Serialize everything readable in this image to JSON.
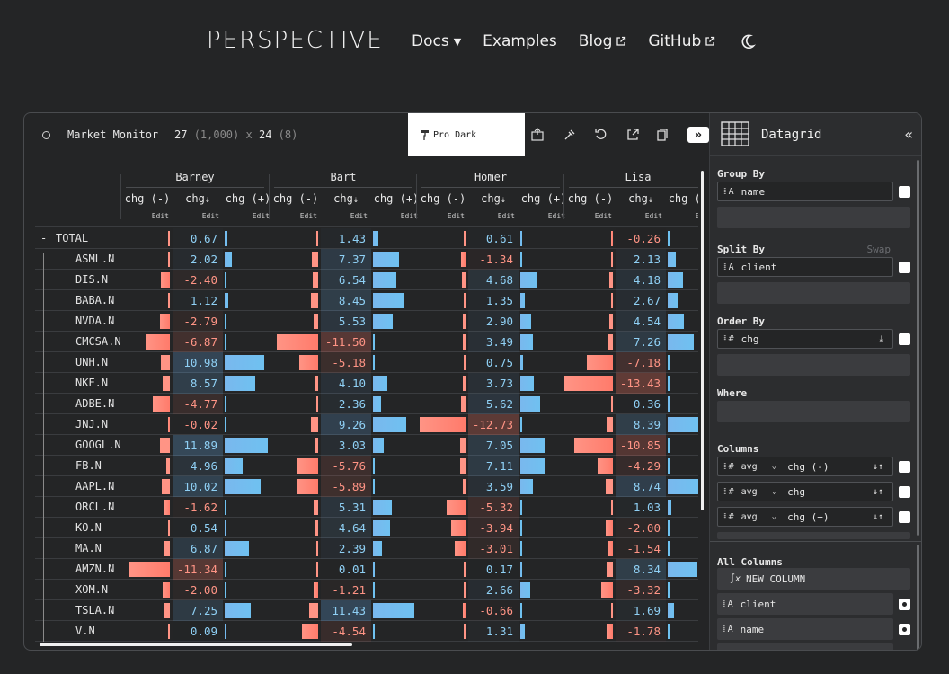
{
  "nav": {
    "logo": "PERSPECTIVE",
    "items": [
      {
        "label": "Docs"
      },
      {
        "label": "Examples"
      },
      {
        "label": "Blog"
      },
      {
        "label": "GitHub"
      }
    ]
  },
  "toolbar": {
    "title": "Market Monitor",
    "rows": "27",
    "rows_total": "(1,000)",
    "times": "x",
    "cols": "24",
    "cols_total": "(8)",
    "theme": "Pro Dark",
    "collapse": "»"
  },
  "colors": {
    "negative_bar": "#ff9485",
    "positive_bar": "#6fc1f0",
    "negative_text": "#ff9485",
    "positive_text": "#8fd0f5"
  },
  "grid": {
    "groups": [
      "Barney",
      "Bart",
      "Homer",
      "Lisa"
    ],
    "columns": [
      "chg (-)",
      "chg",
      "chg (+)"
    ],
    "edit_label": "Edit",
    "sort_icon": "sort-desc-icon",
    "total_label": "TOTAL",
    "collapse_marker": "-",
    "rows": [
      {
        "name": "TOTAL",
        "barney": 0.67,
        "bart": 1.43,
        "homer": 0.61,
        "lisa": -0.26
      },
      {
        "name": "ASML.N",
        "barney": 2.02,
        "bart": 7.37,
        "homer": -1.34,
        "lisa": 2.13
      },
      {
        "name": "DIS.N",
        "barney": -2.4,
        "bart": 6.54,
        "homer": 4.68,
        "lisa": 4.18
      },
      {
        "name": "BABA.N",
        "barney": 1.12,
        "bart": 8.45,
        "homer": 1.35,
        "lisa": 2.67
      },
      {
        "name": "NVDA.N",
        "barney": -2.79,
        "bart": 5.53,
        "homer": 2.9,
        "lisa": 4.54
      },
      {
        "name": "CMCSA.N",
        "barney": -6.87,
        "bart": -11.5,
        "homer": 3.49,
        "lisa": 7.26
      },
      {
        "name": "UNH.N",
        "barney": 10.98,
        "bart": -5.18,
        "homer": 0.75,
        "lisa": -7.18
      },
      {
        "name": "NKE.N",
        "barney": 8.57,
        "bart": 4.1,
        "homer": 3.73,
        "lisa": -13.43
      },
      {
        "name": "ADBE.N",
        "barney": -4.77,
        "bart": 2.36,
        "homer": 5.62,
        "lisa": 0.36
      },
      {
        "name": "JNJ.N",
        "barney": -0.02,
        "bart": 9.26,
        "homer": -12.73,
        "lisa": 8.39
      },
      {
        "name": "GOOGL.N",
        "barney": 11.89,
        "bart": 3.03,
        "homer": 7.05,
        "lisa": -10.85
      },
      {
        "name": "FB.N",
        "barney": 4.96,
        "bart": -5.76,
        "homer": 7.11,
        "lisa": -4.29
      },
      {
        "name": "AAPL.N",
        "barney": 10.02,
        "bart": -5.89,
        "homer": 3.59,
        "lisa": 8.74
      },
      {
        "name": "ORCL.N",
        "barney": -1.62,
        "bart": 5.31,
        "homer": -5.32,
        "lisa": 1.03
      },
      {
        "name": "KO.N",
        "barney": 0.54,
        "bart": 4.64,
        "homer": -3.94,
        "lisa": -2.0
      },
      {
        "name": "MA.N",
        "barney": 6.87,
        "bart": 2.39,
        "homer": -3.01,
        "lisa": -1.54
      },
      {
        "name": "AMZN.N",
        "barney": -11.34,
        "bart": 0.01,
        "homer": 0.17,
        "lisa": 8.34
      },
      {
        "name": "XOM.N",
        "barney": -2.0,
        "bart": -1.21,
        "homer": 2.66,
        "lisa": -3.32
      },
      {
        "name": "TSLA.N",
        "barney": 7.25,
        "bart": 11.43,
        "homer": -0.66,
        "lisa": 1.69
      },
      {
        "name": "V.N",
        "barney": 0.09,
        "bart": -4.54,
        "homer": 1.31,
        "lisa": -1.78
      }
    ]
  },
  "panel": {
    "title": "Datagrid",
    "close": "«",
    "group_by_label": "Group By",
    "group_by": {
      "name": "name",
      "type": "A"
    },
    "split_by_label": "Split By",
    "swap_label": "Swap",
    "split_by": {
      "name": "client",
      "type": "A"
    },
    "order_by_label": "Order By",
    "order_by": {
      "name": "chg",
      "type": "#"
    },
    "where_label": "Where",
    "columns_label": "Columns",
    "columns": [
      {
        "agg": "avg",
        "name": "chg (-)",
        "type": "#"
      },
      {
        "agg": "avg",
        "name": "chg",
        "type": "#"
      },
      {
        "agg": "avg",
        "name": "chg (+)",
        "type": "#"
      }
    ],
    "all_columns_label": "All Columns",
    "new_column": "NEW COLUMN",
    "all_columns": [
      {
        "name": "client",
        "type": "A"
      },
      {
        "name": "name",
        "type": "A"
      }
    ]
  }
}
